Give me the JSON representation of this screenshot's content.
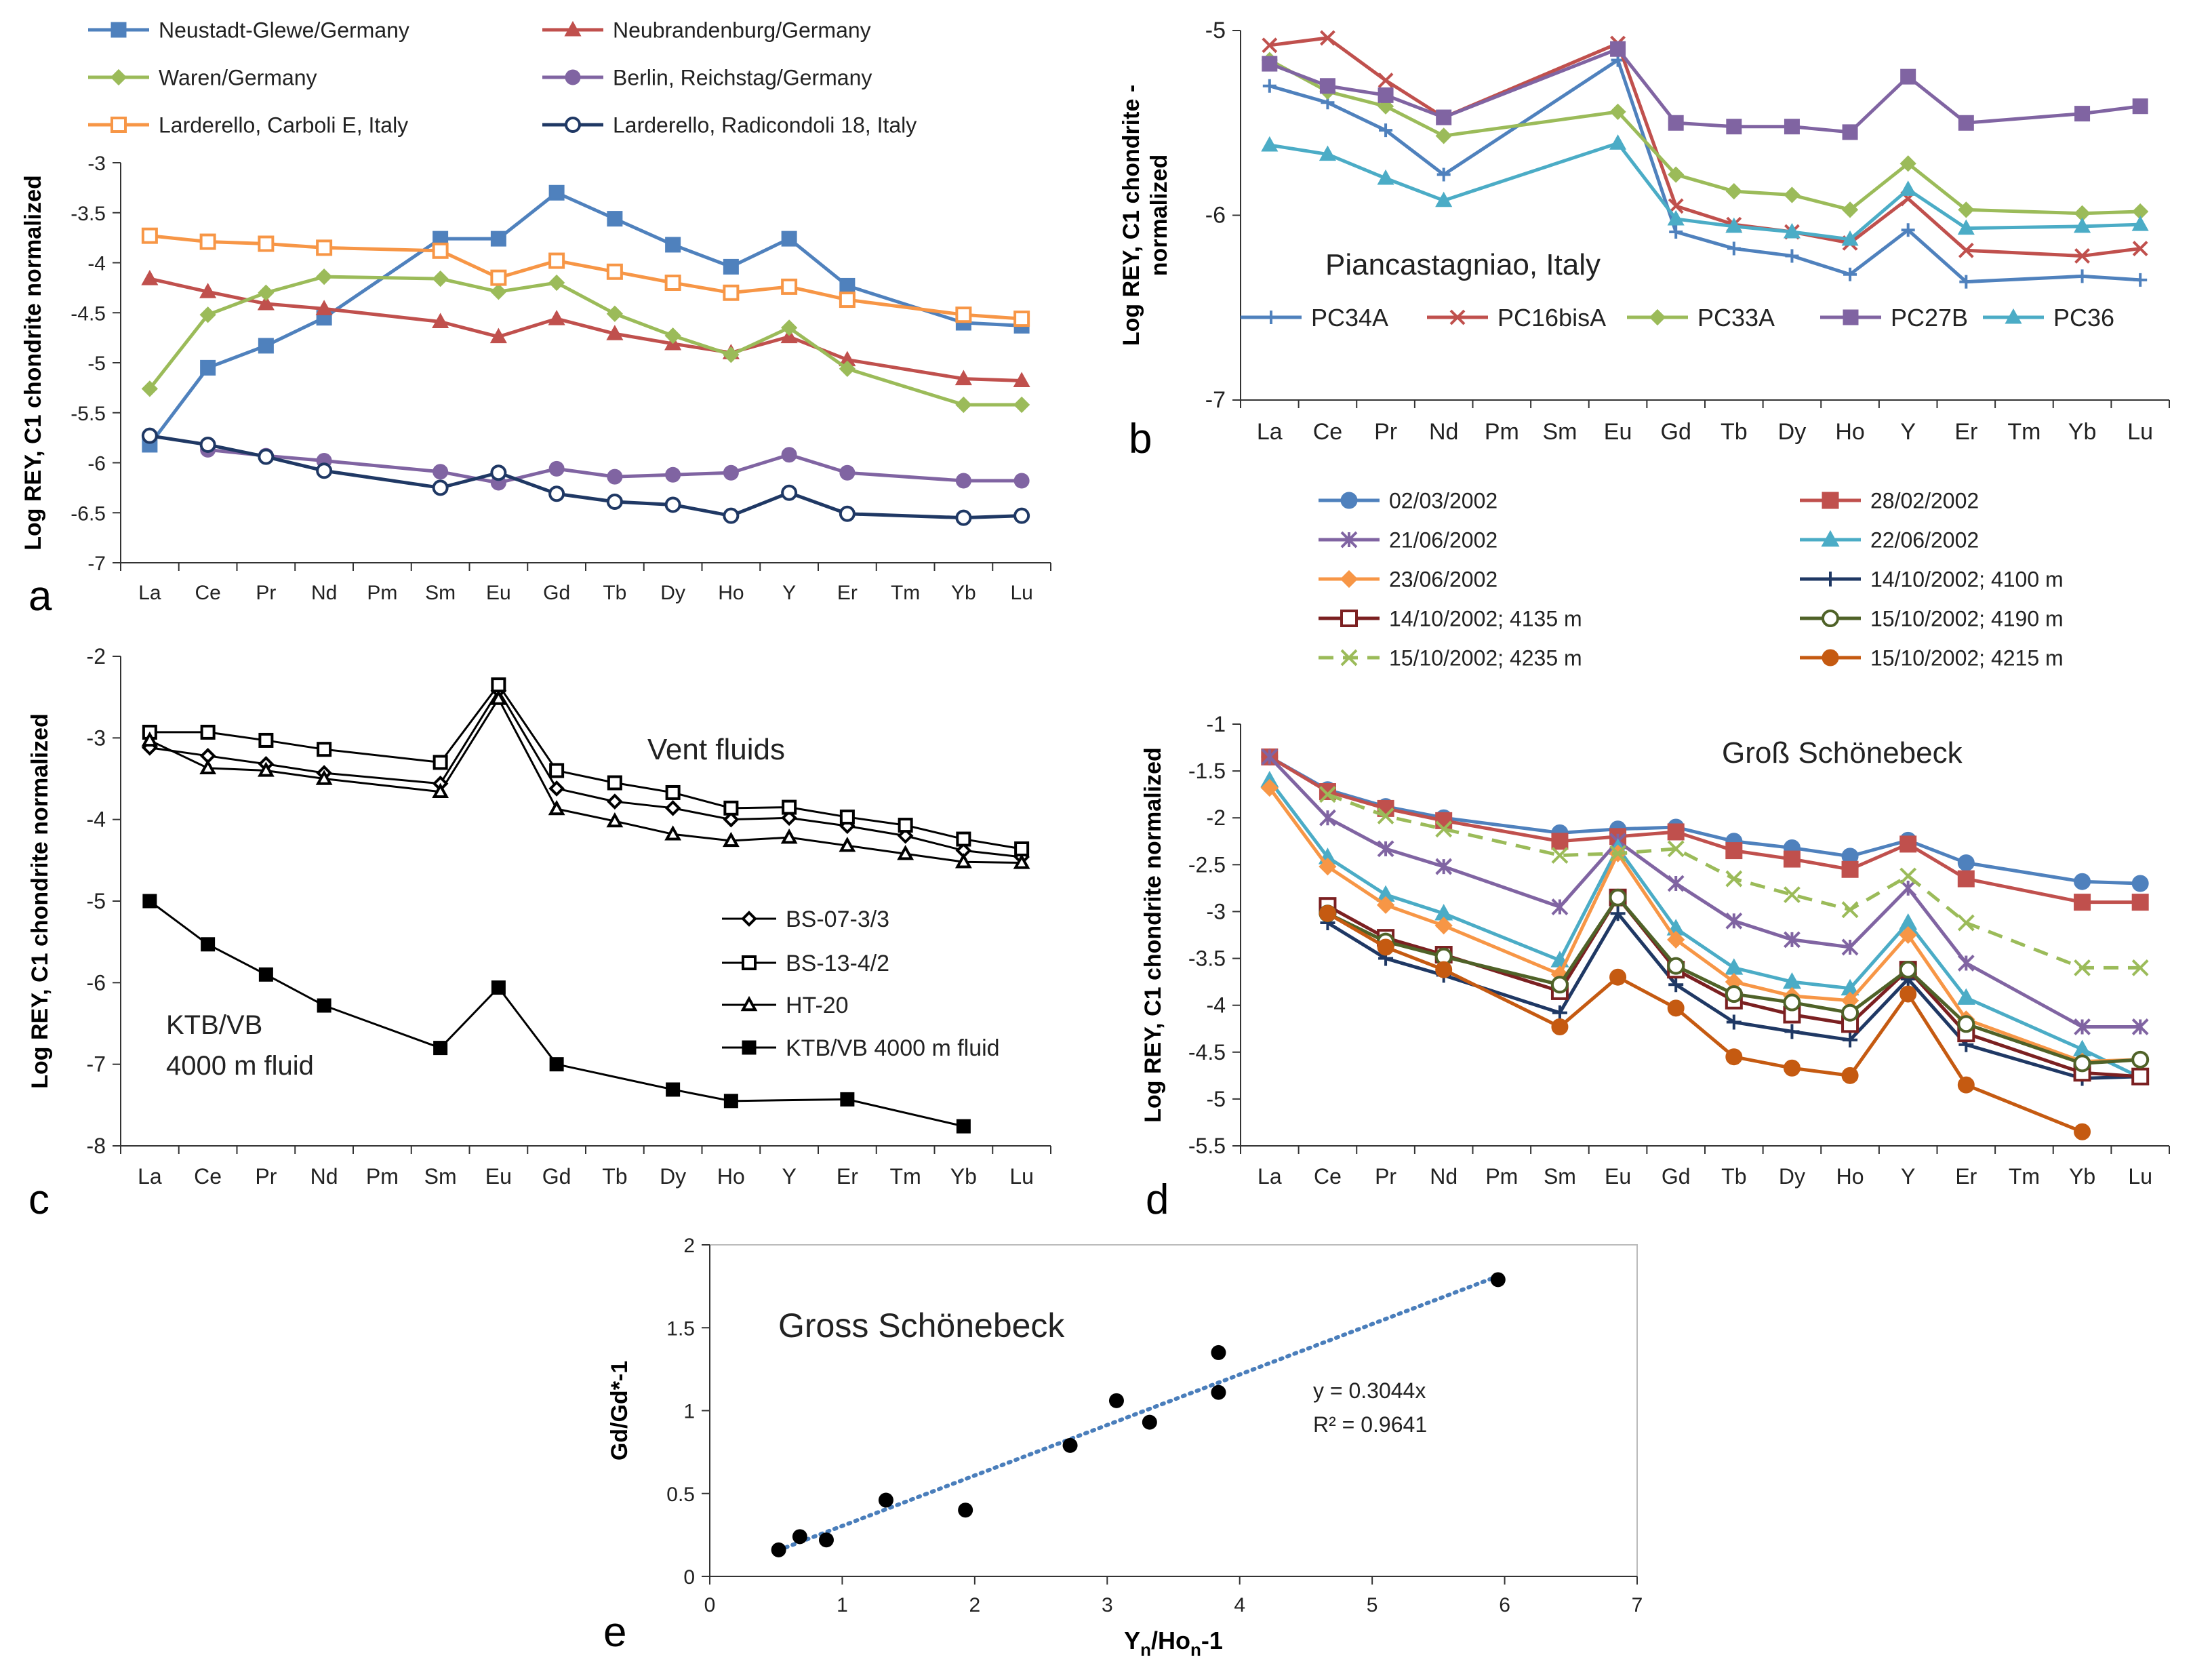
{
  "colors": {
    "blue": "#4f81bd",
    "red": "#c0504d",
    "green": "#9bbb59",
    "purple": "#8064a2",
    "aqua": "#4bacc6",
    "orange": "#f79646",
    "navy": "#1f3864",
    "darkred": "#7b2021",
    "olive": "#4f6228",
    "burnt": "#c55a11",
    "black": "#000000",
    "trend": "#4a7ebb"
  },
  "chart_data": [
    {
      "panel": "a",
      "type": "line",
      "title": "",
      "ylabel": "Log REY, C1 chondrite normalized",
      "xlabel": "",
      "categories": [
        "La",
        "Ce",
        "Pr",
        "Nd",
        "Pm",
        "Sm",
        "Eu",
        "Gd",
        "Tb",
        "Dy",
        "Ho",
        "Y",
        "Er",
        "Tm",
        "Yb",
        "Lu"
      ],
      "ylim": [
        -7,
        -3
      ],
      "yticks": [
        -3,
        -3.5,
        -4,
        -4.5,
        -5,
        -5.5,
        -6,
        -6.5,
        -7
      ],
      "ytick_labels": [
        "-3",
        "-3.5",
        "-4",
        "-4.5",
        "-5",
        "-5.5",
        "-6",
        "-6.5",
        "-7"
      ],
      "legend_position": "top",
      "series": [
        {
          "name": "Neustadt-Glewe/Germany",
          "color": "blue",
          "marker": "square",
          "values": [
            -5.82,
            -5.05,
            -4.83,
            -4.55,
            null,
            -3.76,
            -3.76,
            -3.3,
            -3.56,
            -3.82,
            -4.04,
            -3.76,
            -4.23,
            null,
            -4.6,
            -4.63
          ]
        },
        {
          "name": "Neubrandenburg/Germany",
          "color": "red",
          "marker": "triangle",
          "values": [
            -4.16,
            -4.29,
            -4.41,
            -4.46,
            null,
            -4.59,
            -4.74,
            -4.56,
            -4.71,
            -4.81,
            -4.9,
            -4.74,
            -4.97,
            null,
            -5.16,
            -5.18
          ]
        },
        {
          "name": "Waren/Germany",
          "color": "green",
          "marker": "diamond",
          "values": [
            -5.26,
            -4.52,
            -4.3,
            -4.14,
            null,
            -4.16,
            -4.29,
            -4.2,
            -4.51,
            -4.73,
            -4.92,
            -4.65,
            -5.06,
            null,
            -5.42,
            -5.42
          ]
        },
        {
          "name": "Berlin, Reichstag/Germany",
          "color": "purple",
          "marker": "circle",
          "values": [
            null,
            -5.87,
            -5.93,
            -5.98,
            null,
            -6.09,
            -6.2,
            -6.06,
            -6.14,
            -6.12,
            -6.1,
            -5.92,
            -6.1,
            null,
            -6.18,
            -6.18
          ]
        },
        {
          "name": "Larderello, Carboli E, Italy",
          "color": "orange",
          "marker": "open-square",
          "values": [
            -3.73,
            -3.79,
            -3.81,
            -3.85,
            null,
            -3.88,
            -4.15,
            -3.98,
            -4.09,
            -4.2,
            -4.3,
            -4.24,
            -4.37,
            null,
            -4.52,
            -4.56
          ]
        },
        {
          "name": "Larderello, Radicondoli 18, Italy",
          "color": "navy",
          "marker": "open-circle",
          "values": [
            -5.73,
            -5.82,
            -5.94,
            -6.08,
            null,
            -6.25,
            -6.1,
            -6.31,
            -6.39,
            -6.42,
            -6.53,
            -6.3,
            -6.51,
            null,
            -6.55,
            -6.53
          ]
        }
      ]
    },
    {
      "panel": "b",
      "type": "line",
      "title": "",
      "ylabel": "Log REY, C1 chondrite - normalized",
      "xlabel": "",
      "annotation": "Piancastagniao, Italy",
      "categories": [
        "La",
        "Ce",
        "Pr",
        "Nd",
        "Pm",
        "Sm",
        "Eu",
        "Gd",
        "Tb",
        "Dy",
        "Ho",
        "Y",
        "Er",
        "Tm",
        "Yb",
        "Lu"
      ],
      "ylim": [
        -7,
        -5
      ],
      "yticks": [
        -5,
        -6,
        -7
      ],
      "ytick_labels": [
        "-5",
        "-6",
        "-7"
      ],
      "legend_position": "inside-bottom",
      "series": [
        {
          "name": "PC34A",
          "color": "blue",
          "marker": "plus",
          "values": [
            -5.3,
            -5.39,
            -5.54,
            -5.78,
            null,
            null,
            -5.16,
            -6.09,
            -6.18,
            -6.22,
            -6.32,
            -6.08,
            -6.36,
            null,
            -6.33,
            -6.35
          ]
        },
        {
          "name": "PC16bisA",
          "color": "red",
          "marker": "x",
          "values": [
            -5.08,
            -5.04,
            -5.27,
            -5.47,
            null,
            null,
            -5.07,
            -5.95,
            -6.05,
            -6.09,
            -6.15,
            -5.91,
            -6.19,
            null,
            -6.22,
            -6.18
          ]
        },
        {
          "name": "PC33A",
          "color": "green",
          "marker": "diamond",
          "values": [
            -5.16,
            -5.33,
            -5.41,
            -5.57,
            null,
            null,
            -5.44,
            -5.78,
            -5.87,
            -5.89,
            -5.97,
            -5.72,
            -5.97,
            null,
            -5.99,
            -5.98
          ]
        },
        {
          "name": "PC27B",
          "color": "purple",
          "marker": "square",
          "values": [
            -5.18,
            -5.3,
            -5.35,
            -5.47,
            null,
            null,
            -5.1,
            -5.5,
            -5.52,
            -5.52,
            -5.55,
            -5.25,
            -5.5,
            null,
            -5.45,
            -5.41
          ]
        },
        {
          "name": "PC36",
          "color": "aqua",
          "marker": "triangle",
          "values": [
            -5.62,
            -5.67,
            -5.8,
            -5.92,
            null,
            null,
            -5.61,
            -6.02,
            -6.06,
            -6.09,
            -6.13,
            -5.86,
            -6.07,
            null,
            -6.06,
            -6.05
          ]
        }
      ]
    },
    {
      "panel": "c",
      "type": "line",
      "title": "",
      "ylabel": "Log REY, C1 chondrite normalized",
      "xlabel": "",
      "annotations": [
        "Vent fluids",
        "KTB/VB",
        "4000 m fluid"
      ],
      "categories": [
        "La",
        "Ce",
        "Pr",
        "Nd",
        "Pm",
        "Sm",
        "Eu",
        "Gd",
        "Tb",
        "Dy",
        "Ho",
        "Y",
        "Er",
        "Tm",
        "Yb",
        "Lu"
      ],
      "ylim": [
        -8,
        -2
      ],
      "yticks": [
        -2,
        -3,
        -4,
        -5,
        -6,
        -7,
        -8
      ],
      "ytick_labels": [
        "-2",
        "-3",
        "-4",
        "-5",
        "-6",
        "-7",
        "-8"
      ],
      "legend_position": "inside-right",
      "series": [
        {
          "name": "BS-07-3/3",
          "color": "black",
          "marker": "open-diamond",
          "values": [
            -3.12,
            -3.22,
            -3.32,
            -3.43,
            null,
            -3.56,
            -2.42,
            -3.62,
            -3.78,
            -3.86,
            -4.0,
            -3.98,
            -4.08,
            -4.2,
            -4.38,
            -4.46
          ]
        },
        {
          "name": "BS-13-4/2",
          "color": "black",
          "marker": "open-square",
          "values": [
            -2.93,
            -2.93,
            -3.03,
            -3.14,
            null,
            -3.3,
            -2.35,
            -3.4,
            -3.55,
            -3.67,
            -3.86,
            -3.85,
            -3.97,
            -4.07,
            -4.24,
            -4.36
          ]
        },
        {
          "name": "HT-20",
          "color": "black",
          "marker": "open-triangle",
          "values": [
            -3.03,
            -3.37,
            -3.4,
            -3.5,
            null,
            -3.66,
            -2.52,
            -3.87,
            -4.02,
            -4.18,
            -4.26,
            -4.22,
            -4.32,
            -4.42,
            -4.52,
            -4.53
          ]
        },
        {
          "name": "KTB/VB 4000 m fluid",
          "color": "black",
          "marker": "square",
          "values": [
            -5.0,
            -5.53,
            -5.9,
            -6.28,
            null,
            -6.8,
            -6.06,
            -7.0,
            null,
            -7.31,
            -7.45,
            null,
            -7.43,
            null,
            -7.76,
            null
          ]
        }
      ]
    },
    {
      "panel": "d",
      "type": "line",
      "title": "",
      "ylabel": "Log REY, C1 chondrite normalized",
      "xlabel": "",
      "annotation": "Groß Schönebeck",
      "categories": [
        "La",
        "Ce",
        "Pr",
        "Nd",
        "Pm",
        "Sm",
        "Eu",
        "Gd",
        "Tb",
        "Dy",
        "Ho",
        "Y",
        "Er",
        "Tm",
        "Yb",
        "Lu"
      ],
      "ylim": [
        -5.5,
        -1
      ],
      "yticks": [
        -1,
        -1.5,
        -2,
        -2.5,
        -3,
        -3.5,
        -4,
        -4.5,
        -5,
        -5.5
      ],
      "ytick_labels": [
        "-1",
        "-1.5",
        "-2",
        "-2.5",
        "-3",
        "-3.5",
        "-4",
        "-4.5",
        "-5",
        "-5.5"
      ],
      "legend_position": "top",
      "series": [
        {
          "name": "02/03/2002",
          "color": "blue",
          "marker": "circle",
          "values": [
            -1.35,
            -1.7,
            -1.88,
            -2.0,
            null,
            -2.16,
            -2.12,
            -2.1,
            -2.25,
            -2.32,
            -2.41,
            -2.24,
            -2.48,
            null,
            -2.68,
            -2.7
          ]
        },
        {
          "name": "28/02/2002",
          "color": "red",
          "marker": "square",
          "values": [
            -1.35,
            -1.72,
            -1.9,
            -2.03,
            null,
            -2.25,
            -2.2,
            -2.15,
            -2.35,
            -2.44,
            -2.55,
            -2.28,
            -2.65,
            null,
            -2.9,
            -2.9
          ]
        },
        {
          "name": "21/06/2002",
          "color": "purple",
          "marker": "star",
          "values": [
            -1.35,
            -2.0,
            -2.33,
            -2.52,
            null,
            -2.95,
            -2.25,
            -2.7,
            -3.1,
            -3.3,
            -3.38,
            -2.75,
            -3.55,
            null,
            -4.23,
            -4.23
          ]
        },
        {
          "name": "22/06/2002",
          "color": "aqua",
          "marker": "triangle",
          "values": [
            -1.6,
            -2.42,
            -2.82,
            -3.02,
            null,
            -3.52,
            -2.32,
            -3.18,
            -3.6,
            -3.75,
            -3.82,
            -3.12,
            -3.92,
            null,
            -4.47,
            -4.77
          ]
        },
        {
          "name": "23/06/2002",
          "color": "orange",
          "marker": "diamond",
          "values": [
            -1.68,
            -2.52,
            -2.93,
            -3.15,
            null,
            -3.67,
            -2.38,
            -3.3,
            -3.75,
            -3.9,
            -3.95,
            -3.25,
            -4.15,
            null,
            -4.6,
            -4.58
          ]
        },
        {
          "name": "14/10/2002; 4100 m",
          "color": "navy",
          "marker": "plus",
          "values": [
            null,
            -3.12,
            -3.5,
            -3.68,
            null,
            -4.08,
            -3.02,
            -3.78,
            -4.18,
            -4.28,
            -4.37,
            -3.72,
            -4.42,
            null,
            -4.78,
            -4.76
          ]
        },
        {
          "name": "14/10/2002;  4135 m",
          "color": "darkred",
          "marker": "open-square",
          "values": [
            null,
            -2.94,
            -3.28,
            -3.46,
            null,
            -3.85,
            -2.85,
            -3.62,
            -3.95,
            -4.1,
            -4.2,
            -3.62,
            -4.3,
            null,
            -4.72,
            -4.76
          ]
        },
        {
          "name": "15/10/2002; 4190 m",
          "color": "olive",
          "marker": "open-circle",
          "values": [
            null,
            -3.02,
            -3.32,
            -3.48,
            null,
            -3.78,
            -2.85,
            -3.58,
            -3.88,
            -3.97,
            -4.08,
            -3.62,
            -4.2,
            null,
            -4.62,
            -4.58
          ]
        },
        {
          "name": "15/10/2002; 4235 m",
          "color": "green",
          "marker": "x",
          "dashed": true,
          "values": [
            null,
            -1.75,
            -1.98,
            -2.12,
            null,
            -2.4,
            -2.38,
            -2.33,
            -2.65,
            -2.82,
            -2.98,
            -2.62,
            -3.12,
            null,
            -3.6,
            -3.6
          ]
        },
        {
          "name": "15/10/2002; 4215 m",
          "color": "burnt",
          "marker": "circle",
          "values": [
            null,
            -3.02,
            -3.38,
            -3.62,
            null,
            -4.23,
            -3.7,
            -4.03,
            -4.55,
            -4.67,
            -4.75,
            -3.88,
            -4.85,
            null,
            -5.35,
            null
          ]
        }
      ]
    },
    {
      "panel": "e",
      "type": "scatter",
      "title": "",
      "annotation": "Gross Schönebeck",
      "xlabel": "Yn/Hon-1",
      "xlabel_main": "Y",
      "xlabel_mid": "/Ho",
      "xlabel_end": "-1",
      "xlabel_sub": "n",
      "ylabel": "Gd/Gd*-1",
      "xlim": [
        0,
        7
      ],
      "ylim": [
        0,
        2
      ],
      "xticks": [
        0,
        1,
        2,
        3,
        4,
        5,
        6,
        7
      ],
      "xtick_labels": [
        "0",
        "1",
        "2",
        "3",
        "4",
        "5",
        "6",
        "7"
      ],
      "yticks": [
        0,
        0.5,
        1,
        1.5,
        2
      ],
      "ytick_labels": [
        "0",
        "0.5",
        "1",
        "1.5",
        "2"
      ],
      "points": [
        {
          "x": 0.52,
          "y": 0.16
        },
        {
          "x": 0.68,
          "y": 0.24
        },
        {
          "x": 0.88,
          "y": 0.22
        },
        {
          "x": 1.33,
          "y": 0.46
        },
        {
          "x": 1.93,
          "y": 0.4
        },
        {
          "x": 2.72,
          "y": 0.79
        },
        {
          "x": 3.07,
          "y": 1.06
        },
        {
          "x": 3.32,
          "y": 0.93
        },
        {
          "x": 3.84,
          "y": 1.35
        },
        {
          "x": 3.84,
          "y": 1.11
        },
        {
          "x": 5.95,
          "y": 1.79
        }
      ],
      "trendline": {
        "slope": 0.3044,
        "x_from": 0.52,
        "x_to": 5.95,
        "style": "dotted"
      },
      "equation": "y = 0.3044x",
      "r_squared": "R² = 0.9641"
    }
  ],
  "panel_letters": {
    "a": "a",
    "b": "b",
    "c": "c",
    "d": "d",
    "e": "e"
  }
}
